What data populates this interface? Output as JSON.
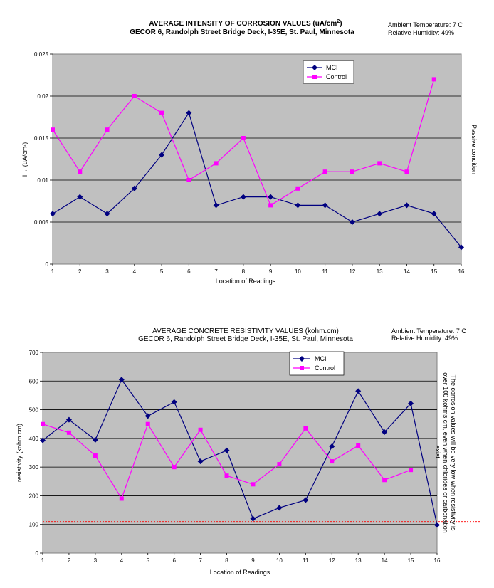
{
  "chart_data": [
    {
      "type": "line",
      "title": "AVERAGE INTENSITY OF CORROSION VALUES (uA/cm",
      "title_sup": "2",
      "title_end": ")",
      "subtitle": "GECOR 6, Randolph Street Bridge Deck, I-35E, St. Paul, Minnesota",
      "ambient_temperature": "Ambient Temperature: 7 C",
      "relative_humidity": "Relative Humidity: 49%",
      "xlabel": "Location of Readings",
      "ylabel": "I→ (uA/cm²)",
      "right_annotation": "Passive condition",
      "categories": [
        "1",
        "2",
        "3",
        "4",
        "5",
        "6",
        "7",
        "8",
        "9",
        "10",
        "11",
        "12",
        "13",
        "14",
        "15",
        "16"
      ],
      "y_ticks": [
        "0",
        "0.005",
        "0.01",
        "0.015",
        "0.02",
        "0.025"
      ],
      "ylim": [
        0,
        0.025
      ],
      "grid": true,
      "legend_position": "top-right",
      "series": [
        {
          "name": "MCI",
          "color": "#000080",
          "marker": "diamond",
          "values": [
            0.006,
            0.008,
            0.006,
            0.009,
            0.013,
            0.018,
            0.007,
            0.008,
            0.008,
            0.007,
            0.007,
            0.005,
            0.006,
            0.007,
            0.006,
            0.002
          ]
        },
        {
          "name": "Control",
          "color": "#ff00ff",
          "marker": "square",
          "values": [
            0.016,
            0.011,
            0.016,
            0.02,
            0.018,
            0.01,
            0.012,
            0.015,
            0.007,
            0.009,
            0.011,
            0.011,
            0.012,
            0.011,
            0.022,
            null
          ]
        }
      ]
    },
    {
      "type": "line",
      "title": "AVERAGE CONCRETE RESISTIVITY VALUES (kohm.cm)",
      "subtitle": "GECOR 6, Randolph Street Bridge Deck, I-35E, St. Paul, Minnesota",
      "ambient_temperature": "Ambient Temperature: 7 C",
      "relative_humidity": "Relative Humidity: 49%",
      "xlabel": "Location of Readings",
      "ylabel": "resistivity (kohm.cm)",
      "right_annotation_line1": "The corrosion values will be very low when resistivity is",
      "right_annotation_line2": "over 100 kohms.cm, even when chlorides or carbonation",
      "right_annotation_line3": "exist.",
      "categories": [
        "1",
        "2",
        "3",
        "4",
        "5",
        "6",
        "7",
        "8",
        "9",
        "10",
        "11",
        "12",
        "13",
        "14",
        "15",
        "16"
      ],
      "y_ticks": [
        "0",
        "100",
        "200",
        "300",
        "400",
        "500",
        "600",
        "700"
      ],
      "ylim": [
        0,
        700
      ],
      "reference_line": 110,
      "grid": true,
      "legend_position": "top-center",
      "series": [
        {
          "name": "MCI",
          "color": "#000080",
          "marker": "diamond",
          "values": [
            393,
            465,
            395,
            605,
            478,
            527,
            320,
            358,
            120,
            158,
            185,
            372,
            565,
            422,
            522,
            98
          ]
        },
        {
          "name": "Control",
          "color": "#ff00ff",
          "marker": "square",
          "values": [
            450,
            420,
            340,
            190,
            450,
            300,
            430,
            270,
            240,
            310,
            435,
            320,
            375,
            255,
            290,
            null
          ]
        }
      ]
    }
  ]
}
